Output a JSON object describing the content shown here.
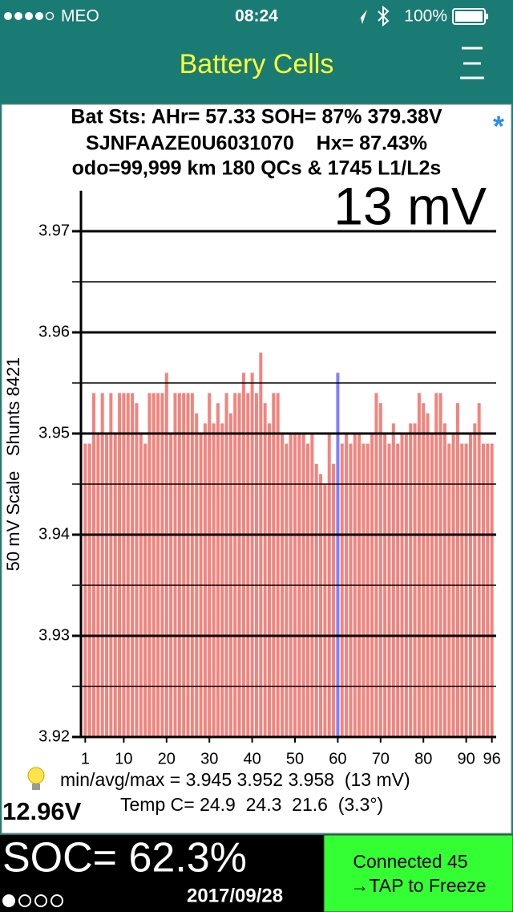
{
  "status": {
    "carrier": "MEO",
    "time": "08:24",
    "battery": "100%"
  },
  "header": {
    "title": "Battery Cells"
  },
  "info": {
    "lines": [
      "Bat Sts: AHr= 57.33 SOH= 87% 379.38V",
      "SJNFAAZE0U6031070    Hx= 87.43%",
      "odo=99,999 km 180 QCs & 1745 L1/L2s"
    ],
    "mark": "*"
  },
  "chart_data": {
    "type": "bar",
    "annotation": "13 mV",
    "y_label": "50 mV Scale   Shunts 8421",
    "x": [
      1,
      2,
      3,
      4,
      5,
      6,
      7,
      8,
      9,
      10,
      11,
      12,
      13,
      14,
      15,
      16,
      17,
      18,
      19,
      20,
      21,
      22,
      23,
      24,
      25,
      26,
      27,
      28,
      29,
      30,
      31,
      32,
      33,
      34,
      35,
      36,
      37,
      38,
      39,
      40,
      41,
      42,
      43,
      44,
      45,
      46,
      47,
      48,
      49,
      50,
      51,
      52,
      53,
      54,
      55,
      56,
      57,
      58,
      59,
      60,
      61,
      62,
      63,
      64,
      65,
      66,
      67,
      68,
      69,
      70,
      71,
      72,
      73,
      74,
      75,
      76,
      77,
      78,
      79,
      80,
      81,
      82,
      83,
      84,
      85,
      86,
      87,
      88,
      89,
      90,
      91,
      92,
      93,
      94,
      95,
      96
    ],
    "values": [
      3.949,
      3.949,
      3.954,
      3.95,
      3.954,
      3.95,
      3.954,
      3.95,
      3.954,
      3.954,
      3.954,
      3.954,
      3.953,
      3.95,
      3.949,
      3.954,
      3.954,
      3.954,
      3.954,
      3.956,
      3.95,
      3.954,
      3.954,
      3.954,
      3.954,
      3.954,
      3.952,
      3.95,
      3.951,
      3.954,
      3.951,
      3.953,
      3.951,
      3.954,
      3.952,
      3.954,
      3.954,
      3.956,
      3.954,
      3.956,
      3.954,
      3.958,
      3.953,
      3.951,
      3.954,
      3.954,
      3.95,
      3.949,
      3.95,
      3.95,
      3.95,
      3.95,
      3.949,
      3.95,
      3.947,
      3.946,
      3.945,
      3.95,
      3.947,
      3.956,
      3.949,
      3.95,
      3.949,
      3.95,
      3.95,
      3.949,
      3.949,
      3.95,
      3.954,
      3.953,
      3.95,
      3.949,
      3.951,
      3.949,
      3.95,
      3.95,
      3.951,
      3.951,
      3.954,
      3.953,
      3.952,
      3.95,
      3.954,
      3.954,
      3.951,
      3.949,
      3.95,
      3.953,
      3.949,
      3.949,
      3.95,
      3.951,
      3.953,
      3.949,
      3.949,
      3.949
    ],
    "color": "#f4837d",
    "highlight": {
      "x": 60,
      "color": "#7f7fff"
    },
    "xlim": [
      0,
      97
    ],
    "xticks": [
      1,
      10,
      20,
      30,
      40,
      50,
      60,
      70,
      80,
      90,
      96
    ],
    "ylim": [
      3.92,
      3.974
    ],
    "yticks": [
      3.92,
      3.93,
      3.94,
      3.95,
      3.96,
      3.97
    ],
    "minor_yticks": [
      3.925,
      3.935,
      3.945,
      3.955,
      3.965
    ],
    "grid": true
  },
  "stats": {
    "minmax": "min/avg/max = 3.945 3.952 3.958  (13 mV)",
    "temp": "Temp C= 24.9  24.3  21.6  (3.3°)",
    "pack_voltage": "12.96V"
  },
  "footer": {
    "soc": "SOC= 62.3%",
    "date": "2017/09/28",
    "connection": "Connected 45",
    "action": "→TAP to Freeze"
  }
}
